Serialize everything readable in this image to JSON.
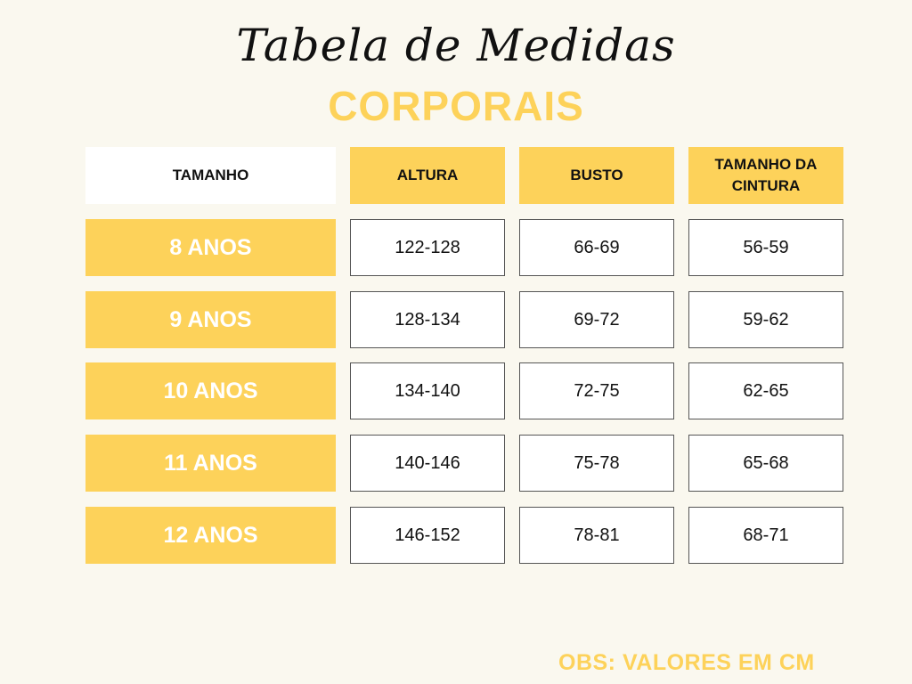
{
  "title": {
    "script": "Tabela de Medidas",
    "main": "CORPORAIS"
  },
  "table": {
    "headers": [
      "TAMANHO",
      "ALTURA",
      "BUSTO",
      "TAMANHO DA CINTURA"
    ],
    "rows": [
      {
        "size": "8 ANOS",
        "altura": "122-128",
        "busto": "66-69",
        "cintura": "56-59"
      },
      {
        "size": "9 ANOS",
        "altura": "128-134",
        "busto": "69-72",
        "cintura": "59-62"
      },
      {
        "size": "10 ANOS",
        "altura": "134-140",
        "busto": "72-75",
        "cintura": "62-65"
      },
      {
        "size": "11 ANOS",
        "altura": "140-146",
        "busto": "75-78",
        "cintura": "65-68"
      },
      {
        "size": "12 ANOS",
        "altura": "146-152",
        "busto": "78-81",
        "cintura": "68-71"
      }
    ]
  },
  "note": "OBS: VALORES EM CM",
  "colors": {
    "accent": "#fdd25a",
    "background": "#faf8ef",
    "text": "#111111"
  }
}
